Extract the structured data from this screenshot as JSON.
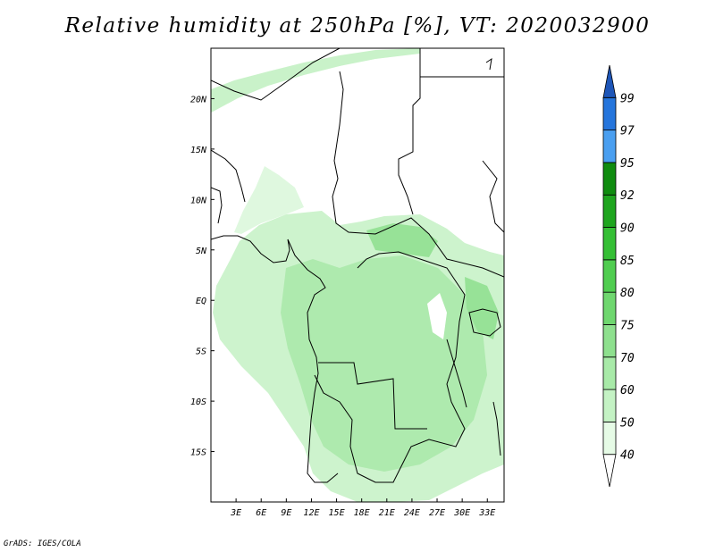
{
  "title": "Relative humidity at 250hPa [%], VT: 2020032900",
  "credit": "GrADS: IGES/COLA",
  "map": {
    "lon_range": [
      0,
      35
    ],
    "lat_range": [
      -20,
      25
    ],
    "lon_ticks": [
      {
        "value": 3,
        "label": "3E"
      },
      {
        "value": 6,
        "label": "6E"
      },
      {
        "value": 9,
        "label": "9E"
      },
      {
        "value": 12,
        "label": "12E"
      },
      {
        "value": 15,
        "label": "15E"
      },
      {
        "value": 18,
        "label": "18E"
      },
      {
        "value": 21,
        "label": "21E"
      },
      {
        "value": 24,
        "label": "24E"
      },
      {
        "value": 27,
        "label": "27E"
      },
      {
        "value": 30,
        "label": "30E"
      },
      {
        "value": 33,
        "label": "33E"
      }
    ],
    "lat_ticks": [
      {
        "value": 20,
        "label": "20N"
      },
      {
        "value": 15,
        "label": "15N"
      },
      {
        "value": 10,
        "label": "10N"
      },
      {
        "value": 5,
        "label": "5N"
      },
      {
        "value": 0,
        "label": "EQ"
      },
      {
        "value": -5,
        "label": "5S"
      },
      {
        "value": -10,
        "label": "10S"
      },
      {
        "value": -15,
        "label": "15S"
      }
    ]
  },
  "colorbar": {
    "levels": [
      "40",
      "50",
      "60",
      "70",
      "75",
      "80",
      "85",
      "90",
      "92",
      "95",
      "97",
      "99"
    ],
    "colors": [
      "#ffffff",
      "#e6fbe6",
      "#c4f2c4",
      "#a8eaa8",
      "#8ee08e",
      "#6fd76f",
      "#50cd50",
      "#35bf35",
      "#1fa51f",
      "#108c10",
      "#4a9ff0",
      "#2575dc",
      "#1e56b8"
    ]
  }
}
